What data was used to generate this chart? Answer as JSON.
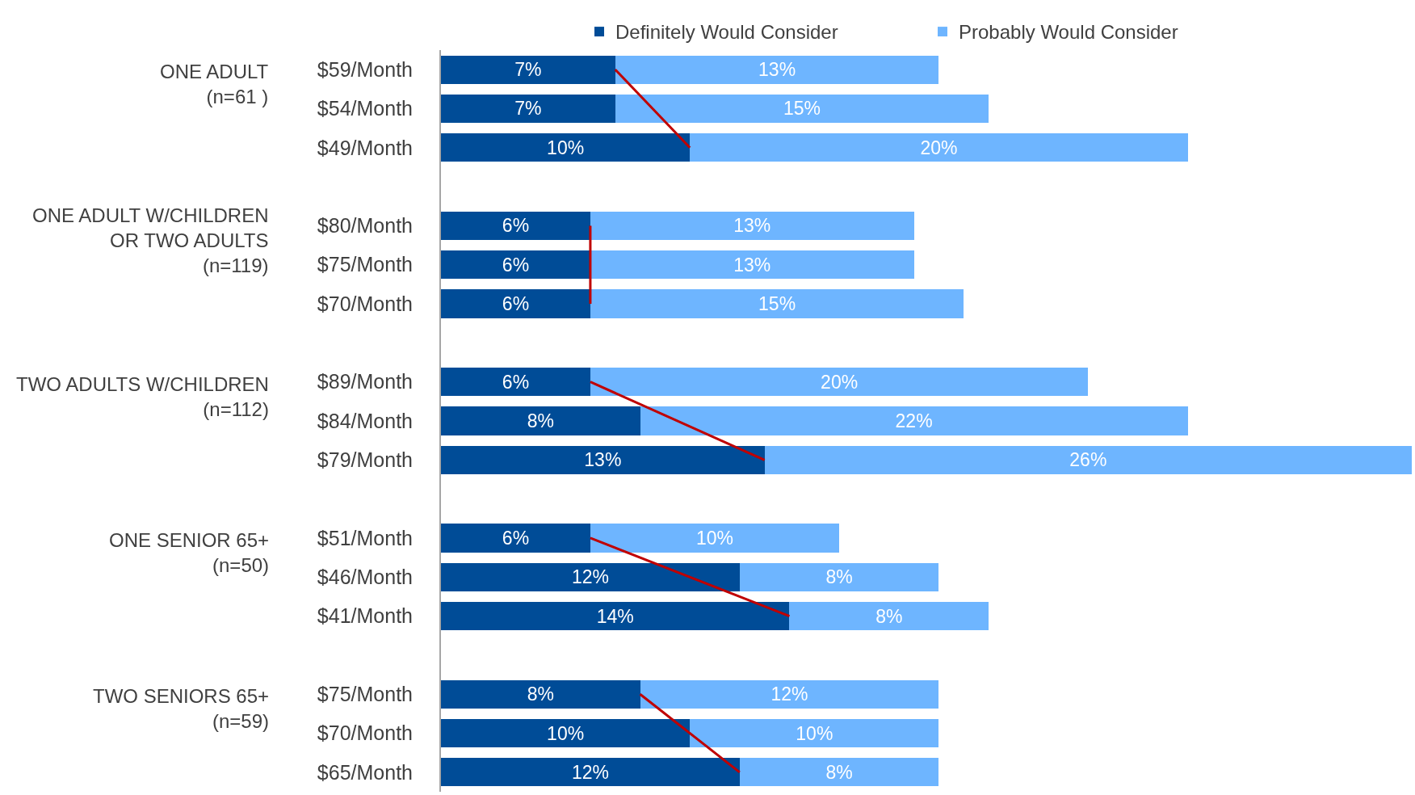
{
  "chart_data": {
    "type": "bar",
    "orientation": "horizontal",
    "stacked": true,
    "legend": "top",
    "tick_labels": "y",
    "xlim": [
      0,
      39
    ],
    "categories": [
      "$59/Month",
      "$54/Month",
      "$49/Month",
      null,
      "$80/Month",
      "$75/Month",
      "$70/Month",
      null,
      "$89/Month",
      "$84/Month",
      "$79/Month",
      null,
      "$51/Month",
      "$46/Month",
      "$41/Month",
      null,
      "$75/Month",
      "$70/Month",
      "$65/Month"
    ],
    "series": [
      {
        "name": "Definitely Would Consider",
        "color": "#004c97",
        "values": [
          7,
          7,
          10,
          null,
          6,
          6,
          6,
          null,
          6,
          8,
          13,
          null,
          6,
          12,
          14,
          null,
          8,
          10,
          12
        ],
        "value_labels": [
          "7%",
          "7%",
          "10%",
          null,
          "6%",
          "6%",
          "6%",
          null,
          "6%",
          "8%",
          "13%",
          null,
          "6%",
          "12%",
          "14%",
          null,
          "8%",
          "10%",
          "12%"
        ]
      },
      {
        "name": "Probably Would Consider",
        "color": "#6eb5ff",
        "values": [
          13,
          15,
          20,
          null,
          13,
          13,
          15,
          null,
          20,
          22,
          26,
          null,
          10,
          8,
          8,
          null,
          12,
          10,
          8
        ],
        "value_labels": [
          "13%",
          "15%",
          "20%",
          null,
          "13%",
          "13%",
          "15%",
          null,
          "20%",
          "22%",
          "26%",
          null,
          "10%",
          "8%",
          "8%",
          null,
          "12%",
          "10%",
          "8%"
        ]
      },
      {
        "type": "line",
        "color": "#c00000",
        "values": [
          7,
          null,
          10,
          null,
          null,
          null,
          null,
          null,
          null,
          null,
          null,
          null,
          null,
          null,
          null,
          null,
          null,
          null,
          null
        ]
      },
      {
        "type": "line",
        "color": "#c00000",
        "values": [
          null,
          null,
          null,
          null,
          6,
          null,
          6,
          null,
          null,
          null,
          null,
          null,
          null,
          null,
          null,
          null,
          null,
          null,
          null
        ]
      },
      {
        "type": "line",
        "color": "#c00000",
        "values": [
          null,
          null,
          null,
          null,
          null,
          null,
          null,
          null,
          6,
          null,
          13,
          null,
          null,
          null,
          null,
          null,
          null,
          null,
          null
        ]
      },
      {
        "type": "line",
        "color": "#c00000",
        "values": [
          null,
          null,
          null,
          null,
          null,
          null,
          null,
          null,
          null,
          null,
          null,
          null,
          6,
          null,
          14,
          null,
          null,
          null,
          null
        ]
      },
      {
        "type": "line",
        "color": "#c00000",
        "values": [
          null,
          null,
          null,
          null,
          null,
          null,
          null,
          null,
          null,
          null,
          null,
          null,
          null,
          null,
          null,
          null,
          8,
          null,
          12
        ]
      }
    ],
    "annotations": [
      "ONE ADULT\n(n=61 )",
      "ONE ADULT W/CHILDREN\nOR TWO ADULTS\n(n=119)",
      "TWO ADULTS W/CHILDREN\n(n=112)",
      "ONE SENIOR 65+\n(n=50)",
      "TWO SENIORS 65+\n(n=59)"
    ]
  }
}
